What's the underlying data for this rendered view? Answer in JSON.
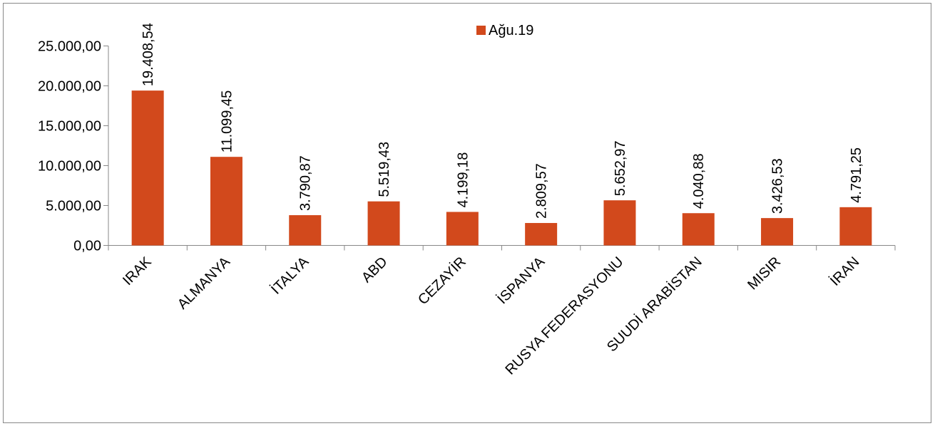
{
  "chart_data": {
    "type": "bar",
    "categories": [
      "IRAK",
      "ALMANYA",
      "İTALYA",
      "ABD",
      "CEZAYİR",
      "İSPANYA",
      "RUSYA FEDERASYONU",
      "SUUDİ ARABİSTAN",
      "MISIR",
      "İRAN"
    ],
    "series": [
      {
        "name": "Ağu.19",
        "values": [
          19408.54,
          11099.45,
          3790.87,
          5519.43,
          4199.18,
          2809.57,
          5652.97,
          4040.88,
          3426.53,
          4791.25
        ],
        "labels": [
          "19.408,54",
          "11.099,45",
          "3.790,87",
          "5.519,43",
          "4.199,18",
          "2.809,57",
          "5.652,97",
          "4.040,88",
          "3.426,53",
          "4.791,25"
        ],
        "color": "#D2491C"
      }
    ],
    "ylim": [
      0,
      25000
    ],
    "yticks": [
      0,
      5000,
      10000,
      15000,
      20000,
      25000
    ],
    "ytick_labels": [
      "0,00",
      "5.000,00",
      "10.000,00",
      "15.000,00",
      "20.000,00",
      "25.000,00"
    ],
    "grid": false,
    "legend_position": "top-center",
    "title": "",
    "xlabel": "",
    "ylabel": ""
  }
}
